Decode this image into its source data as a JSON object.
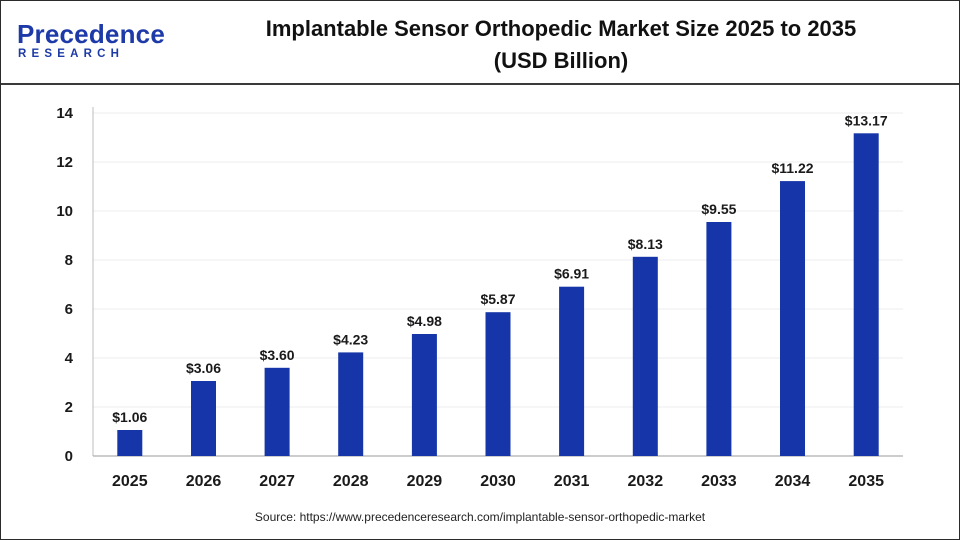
{
  "brand": {
    "name": "Precedence",
    "sub": "RESEARCH",
    "color": "#1d3aa8"
  },
  "title_line1": "Implantable Sensor Orthopedic Market Size 2025 to 2035",
  "title_line2": "(USD Billion)",
  "source": "Source: https://www.precedenceresearch.com/implantable-sensor-orthopedic-market",
  "chart_data": {
    "type": "bar",
    "title": "Implantable Sensor Orthopedic Market Size 2025 to 2035 (USD Billion)",
    "categories": [
      "2025",
      "2026",
      "2027",
      "2028",
      "2029",
      "2030",
      "2031",
      "2032",
      "2033",
      "2034",
      "2035"
    ],
    "values": [
      1.06,
      3.06,
      3.6,
      4.23,
      4.98,
      5.87,
      6.91,
      8.13,
      9.55,
      11.22,
      13.17
    ],
    "value_labels": [
      "$1.06",
      "$3.06",
      "$3.60",
      "$4.23",
      "$4.98",
      "$5.87",
      "$6.91",
      "$8.13",
      "$9.55",
      "$11.22",
      "$13.17"
    ],
    "xlabel": "",
    "ylabel": "",
    "ylim": [
      0,
      14
    ],
    "yticks": [
      0,
      2,
      4,
      6,
      8,
      10,
      12,
      14
    ],
    "grid": true,
    "legend": "none",
    "bar_color": "#1535a8"
  }
}
